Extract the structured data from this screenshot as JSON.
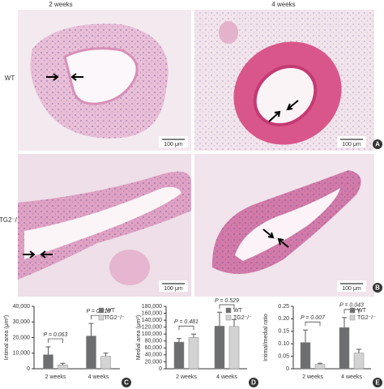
{
  "column_labels": [
    "2 weeks",
    "4 weeks"
  ],
  "row_labels": [
    "WT",
    "TG2⁻/⁻"
  ],
  "scale_bars": [
    "100 μm",
    "100 μm",
    "100 μm",
    "100 μm"
  ],
  "panel_labels": [
    "A",
    "B"
  ],
  "chart_data": [
    {
      "type": "bar",
      "panel_label": "C",
      "y_label": "Intimal area (μm²)",
      "categories": [
        "2 weeks",
        "4 weeks"
      ],
      "series": [
        {
          "name": "WT",
          "color": "#6d6e70",
          "values": [
            9000,
            21000
          ],
          "errors": [
            5000,
            8000
          ]
        },
        {
          "name": "TG2⁻/⁻",
          "color": "#d3d3d3",
          "values": [
            2500,
            8000
          ],
          "errors": [
            1000,
            2000
          ]
        }
      ],
      "p_values": [
        "P = 0.063",
        "P = 0.218"
      ],
      "ylim": [
        0,
        40000
      ],
      "yticks": [
        0,
        {
          "value": 10000,
          "label": "10,000"
        },
        {
          "value": 20000,
          "label": "20,000"
        },
        {
          "value": 30000,
          "label": "30,000"
        },
        {
          "value": 40000,
          "label": "40,000"
        }
      ]
    },
    {
      "type": "bar",
      "panel_label": "D",
      "y_label": "Medial area (μm²)",
      "categories": [
        "2 weeks",
        "4 weeks"
      ],
      "series": [
        {
          "name": "WT",
          "color": "#6d6e70",
          "values": [
            77000,
            123000
          ],
          "errors": [
            10000,
            40000
          ]
        },
        {
          "name": "TG2⁻/⁻",
          "color": "#d3d3d3",
          "values": [
            90000,
            122000
          ],
          "errors": [
            10000,
            20000
          ]
        }
      ],
      "p_values": [
        "P = 0.481",
        "P = 0.529"
      ],
      "ylim": [
        0,
        180000
      ],
      "yticks": [
        0,
        {
          "value": 20000,
          "label": "20,000"
        },
        {
          "value": 40000,
          "label": "40,000"
        },
        {
          "value": 60000,
          "label": "60,000"
        },
        {
          "value": 80000,
          "label": "80,000"
        },
        {
          "value": 100000,
          "label": "100,000"
        },
        {
          "value": 120000,
          "label": "120,000"
        },
        {
          "value": 140000,
          "label": "140,000"
        },
        {
          "value": 160000,
          "label": "160,000"
        },
        {
          "value": 180000,
          "label": "180,000"
        }
      ]
    },
    {
      "type": "bar",
      "panel_label": "E",
      "y_label": "Intimal/medial ratio",
      "categories": [
        "2 weeks",
        "4 weeks"
      ],
      "series": [
        {
          "name": "WT",
          "color": "#6d6e70",
          "values": [
            0.105,
            0.165
          ],
          "errors": [
            0.05,
            0.04
          ]
        },
        {
          "name": "TG2⁻/⁻",
          "color": "#d3d3d3",
          "values": [
            0.018,
            0.063
          ],
          "errors": [
            0.004,
            0.015
          ]
        }
      ],
      "p_values": [
        "P = 0.007",
        "P = 0.043"
      ],
      "ylim": [
        0,
        0.25
      ],
      "yticks": [
        0,
        0.05,
        {
          "value": 0.1,
          "label": "0.10"
        },
        0.15,
        {
          "value": 0.2,
          "label": "0.20"
        },
        0.25
      ]
    }
  ]
}
